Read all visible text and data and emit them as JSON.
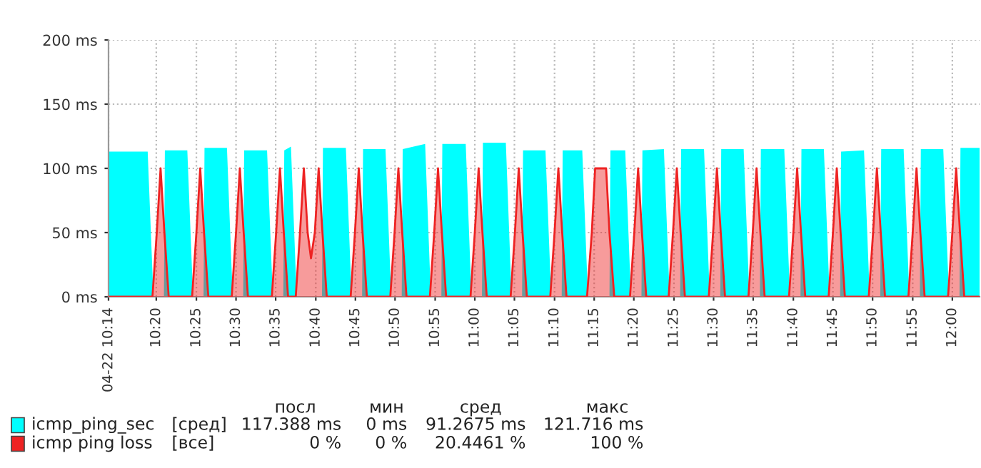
{
  "chart_data": {
    "type": "area",
    "series": [
      {
        "name": "icmp_ping_sec",
        "color": "#00ffff",
        "x": [
          10.233,
          10.315,
          10.327,
          10.349,
          10.351,
          10.398,
          10.41,
          10.432,
          10.434,
          10.481,
          10.493,
          10.515,
          10.517,
          10.565,
          10.577,
          10.599,
          10.601,
          10.615,
          10.627,
          10.68,
          10.682,
          10.73,
          10.742,
          10.764,
          10.766,
          10.813,
          10.825,
          10.847,
          10.849,
          10.896,
          10.908,
          10.93,
          10.932,
          10.981,
          10.993,
          11.015,
          11.017,
          11.065,
          11.077,
          11.099,
          11.101,
          11.148,
          11.16,
          11.182,
          11.184,
          11.225,
          11.237,
          11.282,
          11.284,
          11.315,
          11.327,
          11.349,
          11.351,
          11.396,
          11.408,
          11.43,
          11.432,
          11.48,
          11.492,
          11.514,
          11.516,
          11.563,
          11.575,
          11.597,
          11.599,
          11.648,
          11.66,
          11.682,
          11.684,
          11.731,
          11.743,
          11.765,
          11.767,
          11.815,
          11.827,
          11.849,
          11.851,
          11.898,
          11.91,
          11.932,
          11.934,
          11.981,
          11.993,
          12.015,
          12.017,
          12.057
        ],
        "values": [
          113,
          113,
          0,
          0,
          114,
          114,
          0,
          0,
          116,
          116,
          0,
          0,
          114,
          114,
          0,
          0,
          114,
          117,
          0,
          0,
          116,
          116,
          0,
          0,
          115,
          115,
          0,
          0,
          115,
          119,
          0,
          0,
          119,
          119,
          0,
          0,
          120,
          120,
          0,
          0,
          114,
          114,
          0,
          0,
          114,
          114,
          0,
          0,
          114,
          114,
          0,
          0,
          114,
          115,
          0,
          0,
          115,
          115,
          0,
          0,
          115,
          115,
          0,
          0,
          115,
          115,
          0,
          0,
          115,
          115,
          0,
          0,
          113,
          114,
          0,
          0,
          115,
          115,
          0,
          0,
          115,
          115,
          0,
          0,
          116,
          116
        ]
      },
      {
        "name": "icmp ping loss",
        "color": "#ee2222",
        "x": [
          10.233,
          10.325,
          10.334,
          10.342,
          10.35,
          10.359,
          10.408,
          10.417,
          10.425,
          10.433,
          10.442,
          10.491,
          10.5,
          10.508,
          10.516,
          10.525,
          10.575,
          10.584,
          10.592,
          10.6,
          10.609,
          10.625,
          10.634,
          10.642,
          10.65,
          10.657,
          10.665,
          10.673,
          10.681,
          10.69,
          10.74,
          10.749,
          10.757,
          10.765,
          10.774,
          10.823,
          10.832,
          10.84,
          10.848,
          10.857,
          10.906,
          10.915,
          10.923,
          10.931,
          10.94,
          10.991,
          11.0,
          11.008,
          11.016,
          11.025,
          11.075,
          11.084,
          11.092,
          11.1,
          11.109,
          11.158,
          11.167,
          11.175,
          11.183,
          11.192,
          11.235,
          11.245,
          11.252,
          11.275,
          11.282,
          11.292,
          11.325,
          11.334,
          11.342,
          11.35,
          11.359,
          11.406,
          11.415,
          11.423,
          11.431,
          11.44,
          11.49,
          11.499,
          11.507,
          11.515,
          11.524,
          11.573,
          11.582,
          11.59,
          11.598,
          11.607,
          11.658,
          11.667,
          11.675,
          11.683,
          11.692,
          11.741,
          11.75,
          11.758,
          11.766,
          11.775,
          11.825,
          11.834,
          11.842,
          11.85,
          11.859,
          11.908,
          11.917,
          11.925,
          11.933,
          11.942,
          11.991,
          12.0,
          12.008,
          12.016,
          12.025,
          12.057
        ],
        "values": [
          0,
          0,
          50,
          100,
          50,
          0,
          0,
          50,
          100,
          50,
          0,
          0,
          50,
          100,
          50,
          0,
          0,
          50,
          100,
          50,
          0,
          0,
          50,
          100,
          50,
          30,
          50,
          100,
          50,
          0,
          0,
          50,
          100,
          50,
          0,
          0,
          50,
          100,
          50,
          0,
          0,
          50,
          100,
          50,
          0,
          0,
          50,
          100,
          50,
          0,
          0,
          50,
          100,
          50,
          0,
          0,
          50,
          100,
          50,
          0,
          0,
          50,
          100,
          100,
          50,
          0,
          0,
          50,
          100,
          50,
          0,
          0,
          50,
          100,
          50,
          0,
          0,
          50,
          100,
          50,
          0,
          0,
          50,
          100,
          50,
          0,
          0,
          50,
          100,
          50,
          0,
          0,
          50,
          100,
          50,
          0,
          0,
          50,
          100,
          50,
          0,
          0,
          50,
          100,
          50,
          0,
          0,
          50,
          100,
          50,
          0,
          0
        ]
      }
    ],
    "xlim": [
      10.233,
      12.057
    ],
    "xticks": [
      {
        "value": 10.233,
        "label": "04-22 10:14"
      },
      {
        "value": 10.333,
        "label": "10:20"
      },
      {
        "value": 10.417,
        "label": "10:25"
      },
      {
        "value": 10.5,
        "label": "10:30"
      },
      {
        "value": 10.583,
        "label": "10:35"
      },
      {
        "value": 10.667,
        "label": "10:40"
      },
      {
        "value": 10.75,
        "label": "10:45"
      },
      {
        "value": 10.833,
        "label": "10:50"
      },
      {
        "value": 10.917,
        "label": "10:55"
      },
      {
        "value": 11,
        "label": "11:00"
      },
      {
        "value": 11.083,
        "label": "11:05"
      },
      {
        "value": 11.167,
        "label": "11:10"
      },
      {
        "value": 11.25,
        "label": "11:15"
      },
      {
        "value": 11.333,
        "label": "11:20"
      },
      {
        "value": 11.417,
        "label": "11:25"
      },
      {
        "value": 11.5,
        "label": "11:30"
      },
      {
        "value": 11.583,
        "label": "11:35"
      },
      {
        "value": 11.667,
        "label": "11:40"
      },
      {
        "value": 11.75,
        "label": "11:45"
      },
      {
        "value": 11.833,
        "label": "11:50"
      },
      {
        "value": 11.917,
        "label": "11:55"
      },
      {
        "value": 12,
        "label": "12:00"
      }
    ],
    "ylim": [
      0,
      200
    ],
    "yticks": [
      {
        "value": 0,
        "label": "0 ms"
      },
      {
        "value": 50,
        "label": "50 ms"
      },
      {
        "value": 100,
        "label": "100 ms"
      },
      {
        "value": 150,
        "label": "150 ms"
      },
      {
        "value": 200,
        "label": "200 ms"
      }
    ],
    "grid": true,
    "legend": "bottom",
    "annotations": [
      "посл",
      "мин",
      "сред",
      "макс",
      "[сред]",
      "117.388 ms",
      "0 ms",
      "91.2675 ms",
      "121.716 ms",
      "[все]",
      "0 %",
      "0 %",
      "20.4461 %",
      "100 %"
    ]
  }
}
